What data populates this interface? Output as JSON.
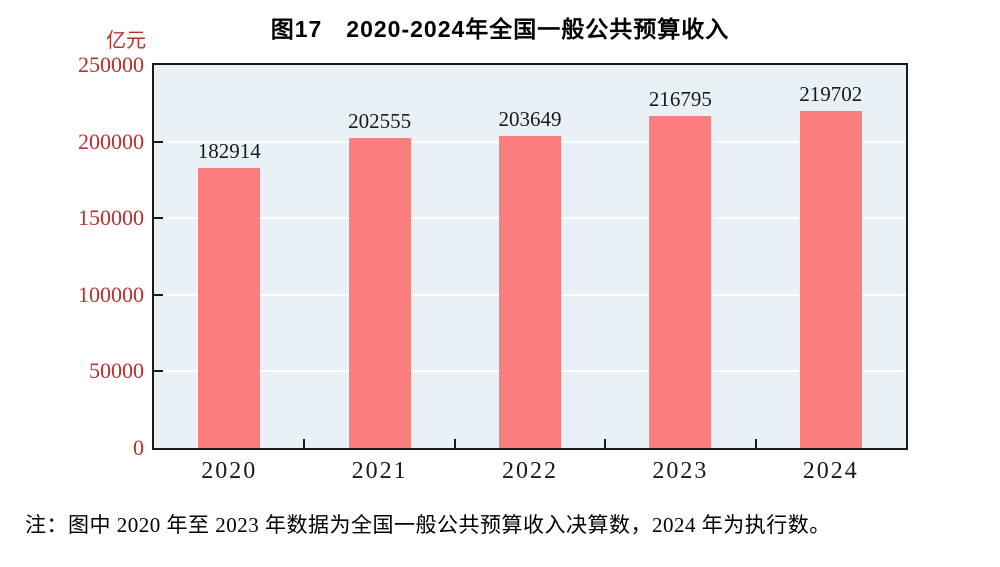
{
  "page": {
    "note": "注：图中 2020 年至 2023 年数据为全国一般公共预算收入决算数，2024 年为执行数。"
  },
  "chart_data": {
    "type": "bar",
    "title": "图17　2020-2024年全国一般公共预算收入",
    "unit_label": "亿元",
    "xlabel": "",
    "ylabel": "亿元",
    "categories": [
      "2020",
      "2021",
      "2022",
      "2023",
      "2024"
    ],
    "values": [
      182914,
      202555,
      203649,
      216795,
      219702
    ],
    "value_labels": [
      "182914",
      "202555",
      "203649",
      "216795",
      "219702"
    ],
    "ylim": [
      0,
      250000
    ],
    "ytick_step": 50000,
    "ytick_labels": [
      "0",
      "50000",
      "100000",
      "150000",
      "200000",
      "250000"
    ],
    "grid": "horizontal white gridlines behind bars",
    "legend": "none",
    "colors": {
      "bar_fill": "#FA7E7E",
      "plot_background": "#E9F1F7",
      "axis_frame": "#1A1A1A",
      "gridline": "#FFFFFF",
      "y_label_text": "#B83030",
      "unit_label_text": "#B83030",
      "data_label_text": "#1A1A1A",
      "x_label_text": "#1A1A1A",
      "title_text": "#000000",
      "note_text": "#000000",
      "page_background": "#FFFFFF"
    }
  }
}
